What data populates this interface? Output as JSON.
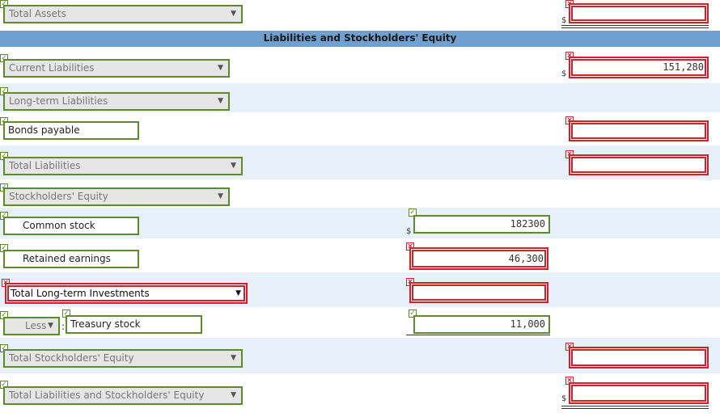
{
  "rows": {
    "total_assets": {
      "label": "Total Assets"
    },
    "section_header": {
      "label": "Liabilities and Stockholders' Equity"
    },
    "current_liabilities": {
      "label": "Current Liabilities",
      "amount": "151,280"
    },
    "long_term_liabilities": {
      "label": "Long-term Liabilities"
    },
    "bonds_payable": {
      "label": "Bonds payable"
    },
    "total_liabilities": {
      "label": "Total Liabilities"
    },
    "stockholders_equity": {
      "label": "Stockholders' Equity"
    },
    "common_stock": {
      "label": "Common stock",
      "amount": "182300"
    },
    "retained_earnings": {
      "label": "Retained earnings",
      "amount": "46,300"
    },
    "total_lt_investments": {
      "label": "Total Long-term Investments"
    },
    "treasury_stock": {
      "operator": "Less",
      "label": "Treasury stock",
      "amount": "11,000"
    },
    "total_stockholders_equity": {
      "label": "Total Stockholders' Equity"
    },
    "total_liabilities_equity": {
      "label": "Total Liabilities and Stockholders' Equity"
    }
  },
  "symbols": {
    "currency": "$",
    "check": "✓",
    "cross": "×",
    "dropdown": "▼",
    "colon": ":"
  },
  "colors": {
    "correct": "#5c8a2c",
    "incorrect": "#d0202a",
    "header": "#6fa0d0",
    "alt_row": "#e8f0fa"
  }
}
